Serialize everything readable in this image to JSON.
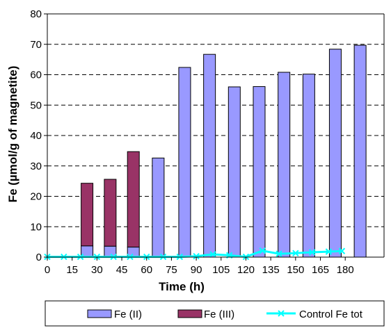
{
  "chart_data": {
    "type": "bar",
    "stacked": true,
    "xlabel": "Time (h)",
    "ylabel": "Fe (µmol/g of magnetite)",
    "xlim": [
      0,
      190
    ],
    "ylim": [
      0,
      80
    ],
    "x_ticks": [
      0,
      15,
      30,
      45,
      60,
      75,
      90,
      105,
      120,
      135,
      150,
      165,
      180
    ],
    "y_ticks": [
      0,
      10,
      20,
      30,
      40,
      50,
      60,
      70,
      80
    ],
    "grid": "horizontal dashed",
    "legend_position": "bottom",
    "bar_series": [
      {
        "name": "Fe (II)",
        "color": "#9999ff",
        "points": [
          {
            "x": 24,
            "y": 3.7
          },
          {
            "x": 38,
            "y": 3.6
          },
          {
            "x": 52,
            "y": 3.3
          },
          {
            "x": 67,
            "y": 32.6
          },
          {
            "x": 83,
            "y": 62.4
          },
          {
            "x": 98,
            "y": 66.7
          },
          {
            "x": 113,
            "y": 56.0
          },
          {
            "x": 128,
            "y": 56.1
          },
          {
            "x": 143,
            "y": 60.8
          },
          {
            "x": 158,
            "y": 60.2
          },
          {
            "x": 174,
            "y": 68.4
          },
          {
            "x": 189,
            "y": 69.7
          }
        ]
      },
      {
        "name": "Fe (III)",
        "color": "#993366",
        "points": [
          {
            "x": 24,
            "y": 20.6
          },
          {
            "x": 38,
            "y": 22.0
          },
          {
            "x": 52,
            "y": 31.4
          }
        ]
      }
    ],
    "line_series": [
      {
        "name": "Control Fe tot",
        "color": "#00ffff",
        "marker": "x",
        "points": [
          {
            "x": 0,
            "y": 0.1
          },
          {
            "x": 10,
            "y": 0.1
          },
          {
            "x": 20,
            "y": 0.1
          },
          {
            "x": 30,
            "y": 0.1
          },
          {
            "x": 40,
            "y": 0.1
          },
          {
            "x": 50,
            "y": 0.1
          },
          {
            "x": 60,
            "y": 0.1
          },
          {
            "x": 70,
            "y": 0.1
          },
          {
            "x": 80,
            "y": 0.1
          },
          {
            "x": 90,
            "y": 0.3
          },
          {
            "x": 100,
            "y": 0.9
          },
          {
            "x": 110,
            "y": 0.6
          },
          {
            "x": 120,
            "y": 0.1
          },
          {
            "x": 130,
            "y": 2.1
          },
          {
            "x": 140,
            "y": 1.1
          },
          {
            "x": 150,
            "y": 1.3
          },
          {
            "x": 160,
            "y": 1.6
          },
          {
            "x": 170,
            "y": 1.8
          },
          {
            "x": 178,
            "y": 2.0
          }
        ]
      }
    ]
  }
}
